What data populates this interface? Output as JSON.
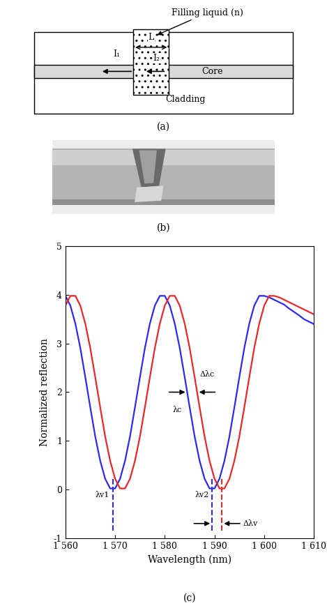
{
  "diagram": {
    "caption": "(a)",
    "liquid_label": "Filling liquid (n)",
    "length_label": "L",
    "reflection_1": "I₁",
    "reflection_2": "I₂",
    "core": "Core",
    "cladding": "Cladding"
  },
  "image": {
    "caption": "(b)"
  },
  "chart_data": {
    "type": "line",
    "caption": "(c)",
    "x_label": "Wavelength (nm)",
    "y_label": "Normalized reflection",
    "x": [
      1560,
      1561,
      1562,
      1563,
      1564,
      1565,
      1566,
      1567,
      1568,
      1569,
      1570,
      1571,
      1572,
      1573,
      1574,
      1575,
      1576,
      1577,
      1578,
      1579,
      1580,
      1581,
      1582,
      1583,
      1584,
      1585,
      1586,
      1587,
      1588,
      1589,
      1590,
      1591,
      1592,
      1593,
      1594,
      1595,
      1596,
      1597,
      1598,
      1599,
      1600,
      1601,
      1602,
      1603,
      1604,
      1605,
      1606,
      1607,
      1608,
      1609,
      1610
    ],
    "series": [
      {
        "color": "#2b2bf0",
        "values": [
          3.98,
          3.78,
          3.41,
          2.91,
          2.31,
          1.69,
          1.09,
          0.59,
          0.22,
          0.02,
          0.02,
          0.22,
          0.59,
          1.09,
          1.69,
          2.31,
          2.91,
          3.41,
          3.78,
          3.98,
          3.98,
          3.78,
          3.41,
          2.91,
          2.31,
          1.69,
          1.09,
          0.59,
          0.22,
          0.02,
          0.02,
          0.22,
          0.59,
          1.09,
          1.69,
          2.31,
          2.91,
          3.41,
          3.78,
          3.98,
          3.98,
          3.95,
          3.9,
          3.85,
          3.8,
          3.72,
          3.65,
          3.58,
          3.5,
          3.45,
          3.4
        ]
      },
      {
        "color": "#e82828",
        "values": [
          3.78,
          3.98,
          3.98,
          3.78,
          3.41,
          2.91,
          2.31,
          1.69,
          1.09,
          0.59,
          0.22,
          0.02,
          0.02,
          0.22,
          0.59,
          1.09,
          1.69,
          2.31,
          2.91,
          3.41,
          3.78,
          3.98,
          3.98,
          3.78,
          3.41,
          2.91,
          2.31,
          1.69,
          1.09,
          0.59,
          0.22,
          0.02,
          0.02,
          0.22,
          0.59,
          1.09,
          1.69,
          2.31,
          2.91,
          3.41,
          3.78,
          3.98,
          3.98,
          3.95,
          3.9,
          3.85,
          3.8,
          3.75,
          3.7,
          3.65,
          3.6
        ]
      }
    ],
    "xlim": [
      1560,
      1610
    ],
    "xticks": [
      {
        "value": 1560,
        "label": "1 560"
      },
      {
        "value": 1570,
        "label": "1 570"
      },
      {
        "value": 1580,
        "label": "1 580"
      },
      {
        "value": 1590,
        "label": "1 590"
      },
      {
        "value": 1600,
        "label": "1 600"
      },
      {
        "value": 1610,
        "label": "1 610"
      }
    ],
    "ylim": [
      -1,
      5
    ],
    "yticks": [
      -1,
      0,
      1,
      2,
      3,
      4,
      5
    ],
    "valley_markers": [
      {
        "text": "λv1",
        "x": [
          1569.5
        ]
      },
      {
        "text": "λv2",
        "x": [
          1589.5,
          1591.5
        ]
      }
    ],
    "shift_markers": [
      {
        "text": "Δλc",
        "left_text": "λc",
        "x": [
          1584.5,
          1586.5
        ],
        "y": 2
      },
      {
        "text": "Δλv",
        "x": [
          1589.5,
          1591.5
        ],
        "y": -0.7
      }
    ]
  }
}
